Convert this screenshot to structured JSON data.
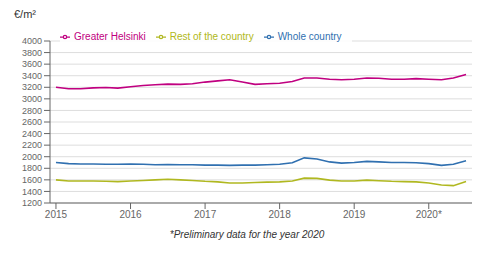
{
  "chart_data": {
    "type": "line",
    "ylabel": "€/m²",
    "annotations": [
      "*Preliminary data for the year 2020"
    ],
    "x": [
      2015.0,
      2015.17,
      2015.33,
      2015.5,
      2015.67,
      2015.83,
      2016.0,
      2016.17,
      2016.33,
      2016.5,
      2016.67,
      2016.83,
      2017.0,
      2017.17,
      2017.33,
      2017.5,
      2017.67,
      2017.83,
      2018.0,
      2018.17,
      2018.33,
      2018.5,
      2018.67,
      2018.83,
      2019.0,
      2019.17,
      2019.33,
      2019.5,
      2019.67,
      2019.83,
      2020.0,
      2020.17,
      2020.33,
      2020.5
    ],
    "series": [
      {
        "name": "Greater Helsinki",
        "color": "#c00080",
        "values": [
          3200,
          3175,
          3175,
          3190,
          3195,
          3185,
          3210,
          3230,
          3245,
          3255,
          3250,
          3260,
          3290,
          3310,
          3330,
          3290,
          3250,
          3260,
          3270,
          3300,
          3360,
          3360,
          3340,
          3330,
          3340,
          3360,
          3355,
          3340,
          3340,
          3350,
          3340,
          3330,
          3360,
          3420
        ]
      },
      {
        "name": "Whole country",
        "color": "#3070b0",
        "values": [
          1900,
          1880,
          1875,
          1875,
          1870,
          1870,
          1875,
          1870,
          1860,
          1865,
          1860,
          1860,
          1855,
          1855,
          1850,
          1855,
          1855,
          1860,
          1870,
          1895,
          1980,
          1960,
          1910,
          1890,
          1900,
          1920,
          1910,
          1900,
          1900,
          1895,
          1880,
          1850,
          1870,
          1930
        ]
      },
      {
        "name": "Rest of the country",
        "color": "#b0b820",
        "values": [
          1600,
          1580,
          1580,
          1580,
          1575,
          1570,
          1580,
          1590,
          1600,
          1610,
          1600,
          1590,
          1575,
          1565,
          1545,
          1545,
          1555,
          1560,
          1565,
          1580,
          1630,
          1625,
          1595,
          1580,
          1580,
          1595,
          1585,
          1575,
          1570,
          1565,
          1545,
          1510,
          1500,
          1570
        ]
      }
    ],
    "xlim": [
      2014.92,
      2020.58
    ],
    "xticks": [
      2015,
      2016,
      2017,
      2018,
      2019,
      {
        "value": 2020,
        "label": "2020*"
      }
    ],
    "ylim": [
      1200,
      4000
    ],
    "yticks": [
      1200,
      1400,
      1600,
      1800,
      2000,
      2200,
      2400,
      2600,
      2800,
      3000,
      3200,
      3400,
      3600,
      3800,
      4000
    ],
    "grid": true,
    "legend": "upper left"
  }
}
